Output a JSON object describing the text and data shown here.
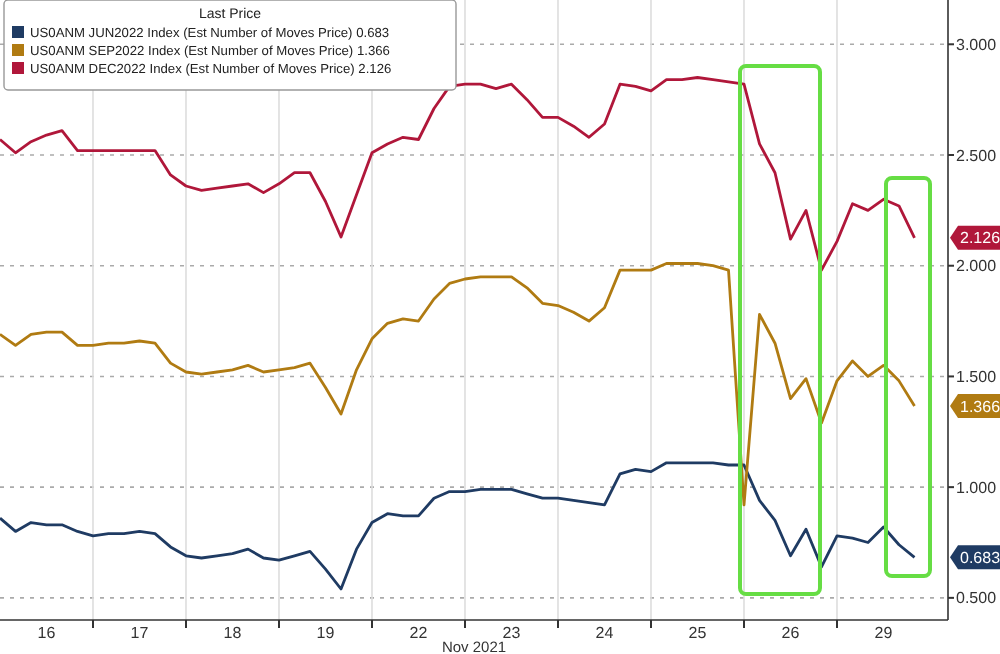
{
  "chart_data": {
    "type": "line",
    "legend_title": "Last Price",
    "xlabel": "Nov 2021",
    "legend": "top left",
    "grid": true,
    "line_style": "solid",
    "marker": "none",
    "categories": [
      null,
      null,
      null,
      "16",
      null,
      null,
      null,
      null,
      null,
      "17",
      null,
      null,
      null,
      null,
      null,
      "18",
      null,
      null,
      null,
      null,
      null,
      "19",
      null,
      null,
      null,
      null,
      null,
      "22",
      null,
      null,
      null,
      null,
      null,
      "23",
      null,
      null,
      null,
      null,
      null,
      "24",
      null,
      null,
      null,
      null,
      null,
      "25",
      null,
      null,
      null,
      null,
      null,
      "26",
      null,
      null,
      null,
      null,
      null,
      "29",
      null,
      null,
      null,
      null
    ],
    "ylim": [
      0.4,
      3.2
    ],
    "yticks": [
      {
        "value": 0.5,
        "label": "0.500"
      },
      {
        "value": 1,
        "label": "1.000"
      },
      {
        "value": 1.5,
        "label": "1.500"
      },
      {
        "value": 2,
        "label": "2.000"
      },
      {
        "value": 2.5,
        "label": "2.500"
      },
      {
        "value": 3,
        "label": "3.000"
      }
    ],
    "series": [
      {
        "name": "US0ANM JUN2022 Index (Est Number of Moves Price) 0.683",
        "color": "#1f3b63",
        "values": [
          0.86,
          0.8,
          0.84,
          0.83,
          0.83,
          0.8,
          0.78,
          0.79,
          0.79,
          0.8,
          0.79,
          0.73,
          0.69,
          0.68,
          0.69,
          0.7,
          0.72,
          0.68,
          0.67,
          0.69,
          0.71,
          0.63,
          0.54,
          0.72,
          0.84,
          0.88,
          0.87,
          0.87,
          0.95,
          0.98,
          0.98,
          0.99,
          0.99,
          0.99,
          0.97,
          0.95,
          0.95,
          0.94,
          0.93,
          0.92,
          1.06,
          1.08,
          1.07,
          1.11,
          1.11,
          1.11,
          1.11,
          1.1,
          1.1,
          0.94,
          0.85,
          0.69,
          0.81,
          0.64,
          0.78,
          0.77,
          0.75,
          0.82,
          0.74,
          0.683,
          null,
          null
        ]
      },
      {
        "name": "US0ANM SEP2022 Index (Est Number of Moves Price) 1.366",
        "color": "#b07b12",
        "values": [
          1.69,
          1.64,
          1.69,
          1.7,
          1.7,
          1.64,
          1.64,
          1.65,
          1.65,
          1.66,
          1.65,
          1.56,
          1.52,
          1.51,
          1.52,
          1.53,
          1.55,
          1.52,
          1.53,
          1.54,
          1.56,
          1.45,
          1.33,
          1.53,
          1.67,
          1.74,
          1.76,
          1.75,
          1.85,
          1.92,
          1.94,
          1.95,
          1.95,
          1.95,
          1.9,
          1.83,
          1.82,
          1.79,
          1.75,
          1.81,
          1.98,
          1.98,
          1.98,
          2.01,
          2.01,
          2.01,
          2.0,
          1.98,
          0.92,
          1.78,
          1.65,
          1.4,
          1.49,
          1.29,
          1.48,
          1.57,
          1.5,
          1.55,
          1.48,
          1.366,
          null,
          null
        ]
      },
      {
        "name": "US0ANM DEC2022 Index (Est Number of Moves Price) 2.126",
        "color": "#b0173a",
        "values": [
          2.57,
          2.51,
          2.56,
          2.59,
          2.61,
          2.52,
          2.52,
          2.52,
          2.52,
          2.52,
          2.52,
          2.41,
          2.36,
          2.34,
          2.35,
          2.36,
          2.37,
          2.33,
          2.37,
          2.42,
          2.42,
          2.29,
          2.13,
          2.32,
          2.51,
          2.55,
          2.58,
          2.57,
          2.71,
          2.81,
          2.82,
          2.82,
          2.8,
          2.82,
          2.75,
          2.67,
          2.67,
          2.63,
          2.58,
          2.64,
          2.82,
          2.81,
          2.79,
          2.84,
          2.84,
          2.85,
          2.84,
          2.83,
          2.82,
          2.55,
          2.42,
          2.12,
          2.25,
          1.98,
          2.11,
          2.28,
          2.25,
          2.3,
          2.27,
          2.126,
          null,
          null
        ]
      }
    ],
    "annotations": [
      "0.683",
      "1.366",
      "2.126"
    ]
  }
}
